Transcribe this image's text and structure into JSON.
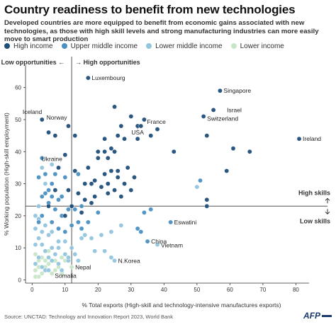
{
  "title": "Country readiness to benefit from new technologies",
  "subtitle": "Developed countries are more equipped to benefit from economic gains associated with new technologies, as those with high skill levels and strong manufacturing industries can more easily move to smart production",
  "source": "Source: UNCTAD: Technology and Innovation Report 2023, World Bank",
  "logo": "AFP",
  "colors": {
    "high_income": "#1f4e79",
    "upper_middle_income": "#4a90c2",
    "lower_middle_income": "#92c5de",
    "lower_income": "#c7e6c7",
    "reference_line": "#555555",
    "axis": "#333333"
  },
  "chart_data": {
    "type": "scatter",
    "xlabel": "% Total exports (High-skill and technology-intensive manufactures exports)",
    "ylabel": "% Working population (High-skill employment)",
    "xlim": [
      -2,
      84
    ],
    "ylim": [
      -1,
      67
    ],
    "x_ticks": [
      0,
      10,
      20,
      30,
      40,
      50,
      60,
      70,
      80
    ],
    "y_ticks": [
      0,
      10,
      20,
      30,
      40,
      50,
      60
    ],
    "grid": false,
    "legend": "top",
    "ref_x": 12,
    "ref_y": 23,
    "region_labels": {
      "low_opportunities": "Low opportunities",
      "high_opportunities": "High opportunities",
      "high_skills": "High skills",
      "low_skills": "Low skills"
    },
    "series": [
      {
        "name": "High income",
        "color_key": "high_income",
        "points": [
          [
            17,
            63
          ],
          [
            3,
            50
          ],
          [
            5,
            46
          ],
          [
            7,
            45
          ],
          [
            11,
            48
          ],
          [
            13,
            45
          ],
          [
            10,
            39
          ],
          [
            13,
            34
          ],
          [
            8,
            35
          ],
          [
            7,
            28
          ],
          [
            11,
            28
          ],
          [
            12,
            23
          ],
          [
            10,
            20
          ],
          [
            5,
            23
          ],
          [
            19,
            26
          ],
          [
            20,
            40
          ],
          [
            22,
            44
          ],
          [
            24,
            41
          ],
          [
            27,
            48
          ],
          [
            25,
            54
          ],
          [
            28,
            44
          ],
          [
            30,
            51
          ],
          [
            32,
            48
          ],
          [
            34,
            50
          ],
          [
            36,
            45
          ],
          [
            38,
            47
          ],
          [
            32,
            44
          ],
          [
            33,
            48
          ],
          [
            23,
            38
          ],
          [
            25,
            40
          ],
          [
            26,
            45
          ],
          [
            20,
            38
          ],
          [
            22,
            33
          ],
          [
            19,
            31
          ],
          [
            21,
            29
          ],
          [
            24,
            34
          ],
          [
            26,
            32
          ],
          [
            28,
            30
          ],
          [
            30,
            28
          ],
          [
            29,
            35
          ],
          [
            31,
            32
          ],
          [
            27,
            26
          ],
          [
            25,
            28
          ],
          [
            15,
            21
          ],
          [
            16,
            25
          ],
          [
            18,
            24
          ],
          [
            14,
            27
          ],
          [
            17,
            35
          ],
          [
            18,
            30
          ],
          [
            16,
            30
          ],
          [
            23,
            30
          ],
          [
            26,
            34
          ],
          [
            22,
            40
          ],
          [
            23,
            27
          ],
          [
            43,
            40
          ],
          [
            53,
            23
          ],
          [
            53,
            25
          ],
          [
            57,
            59
          ],
          [
            52,
            51
          ],
          [
            53,
            45
          ],
          [
            55,
            53
          ],
          [
            61,
            41
          ],
          [
            66,
            40
          ],
          [
            59,
            34
          ],
          [
            81,
            44
          ]
        ]
      },
      {
        "name": "Upper middle income",
        "color_key": "upper_middle_income",
        "points": [
          [
            3,
            38
          ],
          [
            2,
            32
          ],
          [
            4,
            33
          ],
          [
            6,
            30
          ],
          [
            8,
            25
          ],
          [
            3,
            26
          ],
          [
            5,
            24
          ],
          [
            7,
            22
          ],
          [
            9,
            20
          ],
          [
            11,
            22
          ],
          [
            13,
            22
          ],
          [
            3,
            20
          ],
          [
            2,
            18
          ],
          [
            6,
            18
          ],
          [
            8,
            16
          ],
          [
            10,
            15
          ],
          [
            12,
            17
          ],
          [
            14,
            18
          ],
          [
            4,
            27
          ],
          [
            6,
            26
          ],
          [
            9,
            26
          ],
          [
            7,
            33
          ],
          [
            5,
            28
          ],
          [
            10,
            32
          ],
          [
            14,
            33
          ],
          [
            15,
            23
          ],
          [
            17,
            18
          ],
          [
            15,
            16
          ],
          [
            20,
            21
          ],
          [
            51,
            31
          ],
          [
            33,
            15
          ],
          [
            34,
            21
          ],
          [
            36,
            22
          ],
          [
            42,
            18
          ],
          [
            35,
            12
          ],
          [
            32,
            16
          ]
        ]
      },
      {
        "name": "Lower middle income",
        "color_key": "lower_middle_income",
        "points": [
          [
            1,
            20
          ],
          [
            2,
            19
          ],
          [
            4,
            17
          ],
          [
            3,
            15
          ],
          [
            5,
            14
          ],
          [
            2,
            13
          ],
          [
            1,
            11
          ],
          [
            3,
            11
          ],
          [
            4,
            9
          ],
          [
            6,
            10
          ],
          [
            8,
            12
          ],
          [
            10,
            12
          ],
          [
            7,
            8
          ],
          [
            5,
            7
          ],
          [
            2,
            7
          ],
          [
            1,
            5
          ],
          [
            3,
            4
          ],
          [
            4,
            3
          ],
          [
            6,
            6
          ],
          [
            8,
            5
          ],
          [
            9,
            3
          ],
          [
            10,
            8
          ],
          [
            12,
            10
          ],
          [
            13,
            8
          ],
          [
            11,
            6
          ],
          [
            14,
            6
          ],
          [
            15,
            13
          ],
          [
            16,
            14
          ],
          [
            18,
            13
          ],
          [
            21,
            14
          ],
          [
            24,
            15
          ],
          [
            27,
            17
          ],
          [
            22,
            9
          ],
          [
            24,
            7
          ],
          [
            19,
            9
          ],
          [
            6,
            36
          ],
          [
            3,
            35
          ],
          [
            4,
            30
          ],
          [
            1,
            16
          ],
          [
            2,
            23
          ],
          [
            6,
            15
          ],
          [
            8,
            10
          ],
          [
            5,
            3
          ],
          [
            11,
            7
          ],
          [
            50,
            29
          ],
          [
            38,
            11
          ],
          [
            25,
            6
          ]
        ]
      },
      {
        "name": "Lower income",
        "color_key": "lower_income",
        "points": [
          [
            1,
            8
          ],
          [
            2,
            6
          ],
          [
            3,
            2
          ],
          [
            4,
            4
          ],
          [
            5,
            5
          ],
          [
            2,
            1
          ],
          [
            1,
            3
          ],
          [
            6,
            2
          ],
          [
            7,
            3
          ],
          [
            8,
            4
          ],
          [
            9,
            2
          ],
          [
            10,
            6
          ],
          [
            3,
            7
          ],
          [
            5,
            9
          ],
          [
            2,
            4
          ],
          [
            4,
            6
          ],
          [
            7,
            6
          ],
          [
            12,
            4
          ],
          [
            9,
            7
          ],
          [
            1,
            1
          ]
        ]
      }
    ],
    "labels": [
      {
        "text": "Luxembourg",
        "x": 17,
        "y": 63,
        "anchor": "start"
      },
      {
        "text": "Singapore",
        "x": 57,
        "y": 59,
        "anchor": "start"
      },
      {
        "text": "Norway",
        "x": 11,
        "y": 48,
        "anchor": "end"
      },
      {
        "text": "Iceland",
        "x": 3,
        "y": 50,
        "anchor": "end"
      },
      {
        "text": "Israel",
        "x": 58,
        "y": 53,
        "anchor": "start"
      },
      {
        "text": "Switzerland",
        "x": 52,
        "y": 51,
        "anchor": "start"
      },
      {
        "text": "France",
        "x": 34,
        "y": 50,
        "anchor": "start"
      },
      {
        "text": "USA",
        "x": 32,
        "y": 48,
        "anchor": "middle"
      },
      {
        "text": "Ireland",
        "x": 81,
        "y": 44,
        "anchor": "start"
      },
      {
        "text": "Ukraine",
        "x": 6,
        "y": 36,
        "anchor": "middle"
      },
      {
        "text": "Eswatini",
        "x": 42,
        "y": 18,
        "anchor": "start"
      },
      {
        "text": "China",
        "x": 35,
        "y": 12,
        "anchor": "start"
      },
      {
        "text": "Vietnam",
        "x": 38,
        "y": 11,
        "anchor": "start"
      },
      {
        "text": "Nepal",
        "x": 12,
        "y": 4,
        "anchor": "start"
      },
      {
        "text": "N.Korea",
        "x": 25,
        "y": 6,
        "anchor": "start"
      },
      {
        "text": "Somalia",
        "x": 6,
        "y": 2,
        "anchor": "start"
      }
    ]
  }
}
